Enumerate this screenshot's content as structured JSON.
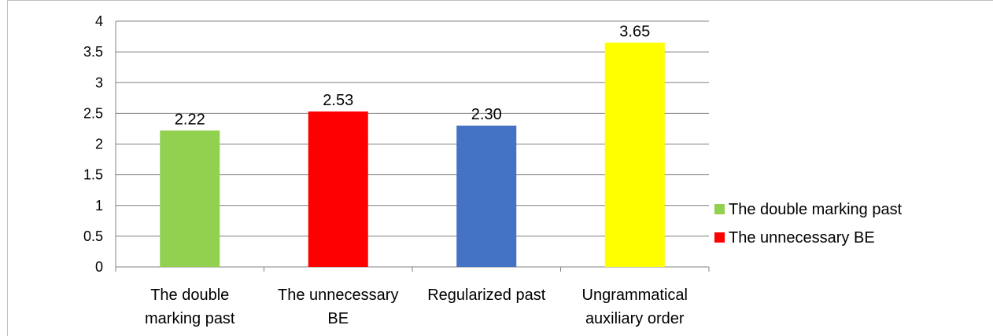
{
  "chart_data": {
    "type": "bar",
    "categories": [
      [
        "The double",
        "marking past"
      ],
      [
        "The unnecessary",
        "BE"
      ],
      [
        "Regularized past"
      ],
      [
        "Ungrammatical",
        "auxiliary order"
      ]
    ],
    "values": [
      2.22,
      2.53,
      2.3,
      3.65
    ],
    "data_labels": [
      "2.22",
      "2.53",
      "2.30",
      "3.65"
    ],
    "colors": [
      "#92d050",
      "#ff0000",
      "#4472c4",
      "#ffff00"
    ],
    "yticks": [
      "0",
      "0.5",
      "1",
      "1.5",
      "2",
      "2.5",
      "3",
      "3.5",
      "4"
    ],
    "ylim": [
      0,
      4
    ],
    "grid": true,
    "title": "",
    "xlabel": "",
    "ylabel": "",
    "legend": {
      "position": "right",
      "entries": [
        {
          "label": "The double marking past",
          "color": "#92d050"
        },
        {
          "label": "The unnecessary BE",
          "color": "#ff0000"
        }
      ]
    }
  }
}
